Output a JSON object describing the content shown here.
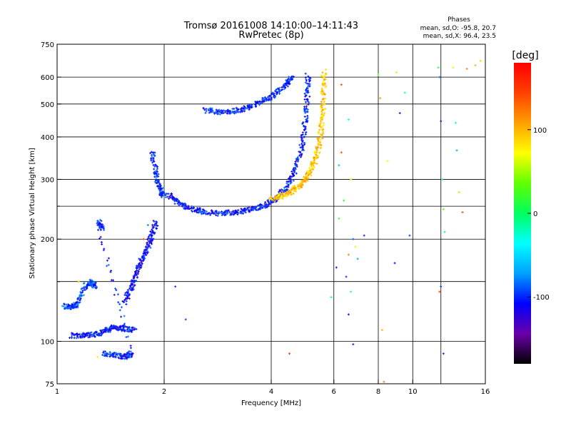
{
  "chart_data": {
    "type": "scatter",
    "title": "Tromsø 20161008 14:10:00–14:11:43",
    "subtitle": "RwPretec (8p)",
    "xlabel": "Frequency [MHz]",
    "ylabel": "Stationary phase Virtual Height [km]",
    "x_scale": "log",
    "y_scale": "log",
    "xlim": [
      1,
      16
    ],
    "ylim": [
      75,
      750
    ],
    "x_ticks": [
      {
        "value": 1,
        "label": "1"
      },
      {
        "value": 2,
        "label": "2"
      },
      {
        "value": 4,
        "label": "4"
      },
      {
        "value": 6,
        "label": "6"
      },
      {
        "value": 8,
        "label": "8"
      },
      {
        "value": 10,
        "label": "10"
      },
      {
        "value": 16,
        "label": "16"
      }
    ],
    "x_grid": [
      2,
      4,
      6,
      8,
      10,
      12
    ],
    "y_ticks": [
      {
        "value": 75,
        "label": "75"
      },
      {
        "value": 100,
        "label": "100"
      },
      {
        "value": 200,
        "label": "200"
      },
      {
        "value": 300,
        "label": "300"
      },
      {
        "value": 400,
        "label": "400"
      },
      {
        "value": 500,
        "label": "500"
      },
      {
        "value": 600,
        "label": "600"
      },
      {
        "value": 750,
        "label": "750"
      }
    ],
    "y_grid": [
      100,
      150,
      200,
      250,
      300,
      400,
      500,
      600
    ],
    "grid": true,
    "phase_info": {
      "title": "Phases",
      "o_line": "mean, sd,O: -95.8, 20.7",
      "x_line": "mean, sd,X:  96.4, 23.5"
    },
    "colorbar": {
      "label": "[deg]",
      "min": -180,
      "max": 180,
      "ticks": [
        {
          "value": 100,
          "label": "100"
        },
        {
          "value": 0,
          "label": "0"
        },
        {
          "value": -100,
          "label": "-100"
        }
      ],
      "stops": [
        "#000000",
        "#6a00a8",
        "#0000ff",
        "#00a0ff",
        "#00ffff",
        "#00ff60",
        "#60ff00",
        "#ffff00",
        "#ffa000",
        "#ff4000",
        "#ff0000"
      ]
    },
    "traces": [
      {
        "kind": "o-F",
        "phase": -105,
        "points": [
          [
            2.05,
            270
          ],
          [
            2.2,
            255
          ],
          [
            2.4,
            245
          ],
          [
            2.6,
            240
          ],
          [
            2.9,
            238
          ],
          [
            3.2,
            240
          ],
          [
            3.5,
            244
          ],
          [
            3.8,
            250
          ],
          [
            4.1,
            262
          ],
          [
            4.4,
            282
          ],
          [
            4.65,
            315
          ],
          [
            4.85,
            365
          ],
          [
            4.97,
            430
          ],
          [
            5.05,
            520
          ],
          [
            5.08,
            610
          ]
        ]
      },
      {
        "kind": "x-F",
        "phase": 95,
        "points": [
          [
            4.0,
            262
          ],
          [
            4.3,
            268
          ],
          [
            4.6,
            278
          ],
          [
            4.9,
            292
          ],
          [
            5.1,
            310
          ],
          [
            5.3,
            340
          ],
          [
            5.45,
            380
          ],
          [
            5.55,
            440
          ],
          [
            5.6,
            520
          ],
          [
            5.63,
            630
          ]
        ]
      },
      {
        "kind": "o-F-upper",
        "phase": -100,
        "points": [
          [
            2.6,
            480
          ],
          [
            2.9,
            472
          ],
          [
            3.2,
            478
          ],
          [
            3.5,
            492
          ],
          [
            3.8,
            510
          ],
          [
            4.1,
            535
          ],
          [
            4.4,
            570
          ],
          [
            4.6,
            600
          ]
        ]
      },
      {
        "kind": "o-F1",
        "phase": -100,
        "points": [
          [
            1.85,
            360
          ],
          [
            1.9,
            310
          ],
          [
            1.95,
            280
          ],
          [
            2.0,
            265
          ]
        ]
      },
      {
        "kind": "o-E",
        "phase": -105,
        "points": [
          [
            1.1,
            104
          ],
          [
            1.2,
            104
          ],
          [
            1.3,
            105
          ],
          [
            1.38,
            108
          ],
          [
            1.45,
            110
          ],
          [
            1.55,
            109
          ],
          [
            1.65,
            108
          ]
        ]
      },
      {
        "kind": "o-Es",
        "phase": -110,
        "points": [
          [
            1.55,
            130
          ],
          [
            1.62,
            145
          ],
          [
            1.68,
            160
          ],
          [
            1.74,
            175
          ],
          [
            1.8,
            190
          ],
          [
            1.85,
            205
          ],
          [
            1.9,
            225
          ]
        ]
      },
      {
        "kind": "o-low",
        "phase": -95,
        "points": [
          [
            1.05,
            127
          ],
          [
            1.1,
            126
          ],
          [
            1.13,
            128
          ],
          [
            1.2,
            145
          ],
          [
            1.25,
            150
          ],
          [
            1.28,
            143
          ]
        ]
      },
      {
        "kind": "o-spread",
        "phase": -100,
        "points": [
          [
            1.35,
            92
          ],
          [
            1.45,
            91
          ],
          [
            1.55,
            90
          ],
          [
            1.62,
            92
          ],
          [
            1.3,
            225
          ],
          [
            1.35,
            215
          ]
        ]
      }
    ],
    "scattered_points": [
      [
        6.2,
        230,
        20
      ],
      [
        6.3,
        570,
        150
      ],
      [
        6.6,
        450,
        -30
      ],
      [
        6.7,
        300,
        60
      ],
      [
        6.8,
        200,
        -90
      ],
      [
        6.6,
        180,
        120
      ],
      [
        6.5,
        155,
        -100
      ],
      [
        6.7,
        140,
        -20
      ],
      [
        6.6,
        120,
        -110
      ],
      [
        6.8,
        98,
        -130
      ],
      [
        6.3,
        360,
        140
      ],
      [
        6.2,
        330,
        -60
      ],
      [
        6.4,
        260,
        10
      ],
      [
        6.9,
        190,
        80
      ],
      [
        7.0,
        175,
        -70
      ],
      [
        6.1,
        165,
        -120
      ],
      [
        5.9,
        135,
        -15
      ],
      [
        7.3,
        205,
        -100
      ],
      [
        8.0,
        610,
        40
      ],
      [
        8.1,
        520,
        110
      ],
      [
        8.5,
        340,
        70
      ],
      [
        9.0,
        620,
        60
      ],
      [
        9.2,
        470,
        -130
      ],
      [
        9.5,
        540,
        -20
      ],
      [
        9.8,
        205,
        -95
      ],
      [
        8.9,
        170,
        -110
      ],
      [
        8.2,
        108,
        100
      ],
      [
        8.3,
        76,
        120
      ],
      [
        11.8,
        640,
        10
      ],
      [
        11.9,
        600,
        -90
      ],
      [
        12.0,
        445,
        -120
      ],
      [
        12.1,
        300,
        -10
      ],
      [
        12.2,
        245,
        30
      ],
      [
        12.3,
        210,
        -5
      ],
      [
        12.0,
        145,
        -100
      ],
      [
        11.9,
        140,
        150
      ],
      [
        12.2,
        92,
        -130
      ],
      [
        13.0,
        640,
        80
      ],
      [
        13.2,
        440,
        -30
      ],
      [
        13.3,
        365,
        -70
      ],
      [
        13.5,
        275,
        50
      ],
      [
        13.8,
        240,
        140
      ],
      [
        14.2,
        635,
        120
      ],
      [
        15.0,
        650,
        100
      ],
      [
        15.5,
        670,
        90
      ],
      [
        16.0,
        665,
        95
      ],
      [
        4.5,
        92,
        150
      ],
      [
        1.7,
        175,
        -100
      ],
      [
        1.75,
        200,
        140
      ],
      [
        1.8,
        220,
        -80
      ],
      [
        2.15,
        145,
        -100
      ],
      [
        2.3,
        116,
        -95
      ],
      [
        1.15,
        150,
        90
      ],
      [
        1.3,
        90,
        80
      ]
    ]
  }
}
